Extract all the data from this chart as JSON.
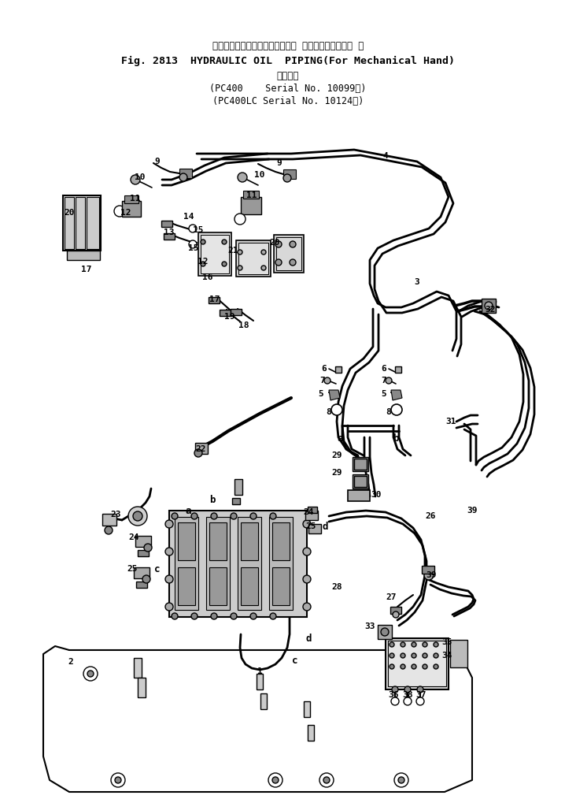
{
  "title_jp": "ハイドロックオイルパイピング（ メカニカルハンド用 ）",
  "title_en": "Fig. 2813  HYDRAULIC OIL  PIPING(For Mechanical Hand)",
  "sub_kanji": "適用号機",
  "sub1": "(PC400    Serial No. 10099～)",
  "sub2": "(PC400LC Serial No. 10124～)",
  "bg": "#ffffff",
  "lc": "#000000",
  "fig_w": 7.32,
  "fig_h": 10.14,
  "dpi": 100
}
